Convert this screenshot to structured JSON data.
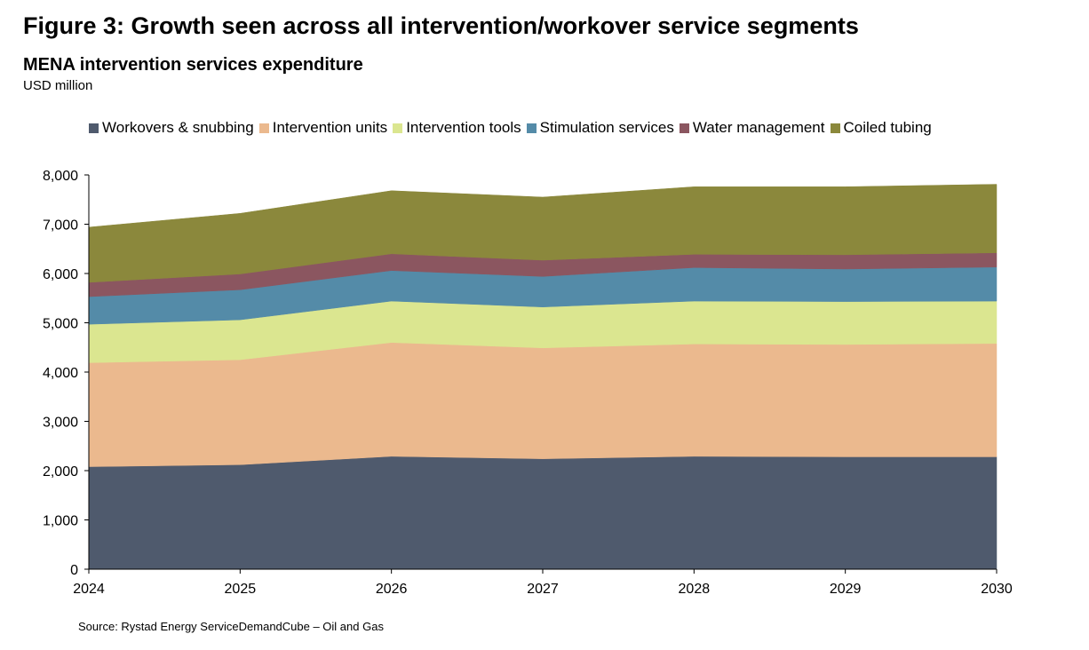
{
  "title": "Figure 3: Growth seen across all intervention/workover service segments",
  "subtitle": "MENA intervention services expenditure",
  "unit": "USD million",
  "source": "Source: Rystad Energy ServiceDemandCube – Oil and Gas",
  "chart_data": {
    "type": "area",
    "stacked": true,
    "x": [
      "2024",
      "2025",
      "2026",
      "2027",
      "2028",
      "2029",
      "2030"
    ],
    "ylim": [
      0,
      8000
    ],
    "yticks": [
      0,
      1000,
      2000,
      3000,
      4000,
      5000,
      6000,
      7000,
      8000
    ],
    "ytick_labels": [
      "0",
      "1,000",
      "2,000",
      "3,000",
      "4,000",
      "5,000",
      "6,000",
      "7,000",
      "8,000"
    ],
    "grid": false,
    "legend_position": "top",
    "series": [
      {
        "name": "Workovers & snubbing",
        "color": "#4f5a6d",
        "values": [
          2080,
          2120,
          2290,
          2240,
          2290,
          2280,
          2280
        ]
      },
      {
        "name": "Intervention units",
        "color": "#ebb98e",
        "values": [
          2110,
          2130,
          2310,
          2250,
          2280,
          2280,
          2300
        ]
      },
      {
        "name": "Intervention tools",
        "color": "#dbe690",
        "values": [
          780,
          810,
          840,
          830,
          870,
          870,
          860
        ]
      },
      {
        "name": "Stimulation services",
        "color": "#548ba8",
        "values": [
          560,
          610,
          620,
          620,
          680,
          660,
          690
        ]
      },
      {
        "name": "Water management",
        "color": "#8b5660",
        "values": [
          290,
          320,
          340,
          330,
          270,
          290,
          290
        ]
      },
      {
        "name": "Coiled tubing",
        "color": "#8b883c",
        "values": [
          1120,
          1230,
          1280,
          1280,
          1370,
          1380,
          1390
        ]
      }
    ]
  }
}
